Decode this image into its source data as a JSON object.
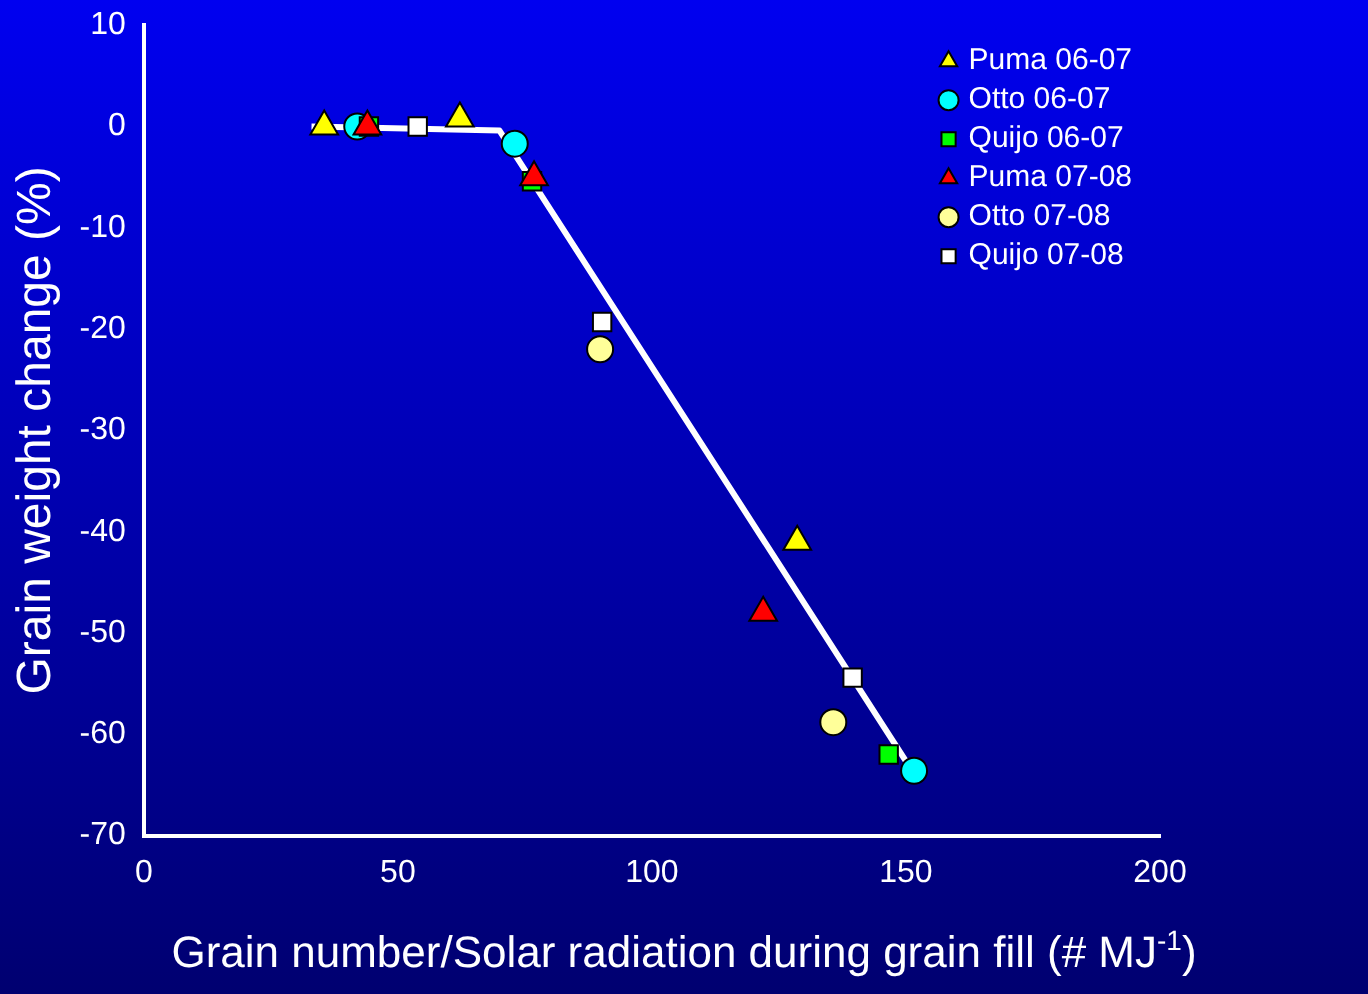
{
  "chart_data": {
    "type": "scatter",
    "xlabel": "Grain number/Solar radiation during grain fill (# MJ$^{-1}$)",
    "ylabel": "Grain weight change (%)",
    "xlim": [
      0,
      200
    ],
    "xticks": [
      0,
      50,
      100,
      150,
      200
    ],
    "ylim": [
      -70,
      10
    ],
    "yticks": [
      -70,
      -60,
      -50,
      -40,
      -30,
      -20,
      -10,
      0,
      10
    ],
    "grid": false,
    "legend": "top right",
    "series": [
      {
        "name": "Puma 06-07",
        "color": "#ffff00",
        "marker": "triangle",
        "x": [
          35.5,
          62.2,
          128.6
        ],
        "values": [
          0,
          0.8,
          -41
        ]
      },
      {
        "name": "Otto 06-07",
        "color": "#00ffff",
        "marker": "circle",
        "x": [
          42,
          73,
          151.6
        ],
        "values": [
          0,
          -1.7,
          -63.6
        ]
      },
      {
        "name": "Quijo 06-07",
        "color": "#00ff00",
        "marker": "square",
        "x": [
          44.3,
          76.4,
          146.6
        ],
        "values": [
          0,
          -5.4,
          -62
        ]
      },
      {
        "name": "Puma 07-08",
        "color": "#ff0000",
        "marker": "triangle",
        "x": [
          44,
          76.8,
          121.9
        ],
        "values": [
          0,
          -5,
          -48
        ]
      },
      {
        "name": "Otto 07-08",
        "color": "#ffff99",
        "marker": "circle",
        "x": [
          89.8,
          135.7
        ],
        "values": [
          -22,
          -58.8
        ]
      },
      {
        "name": "Quijo 07-08",
        "color": "#ffffff",
        "marker": "square",
        "x": [
          53.9,
          90.2,
          139.5
        ],
        "values": [
          0,
          -19.3,
          -54.4
        ]
      },
      {
        "type": "line",
        "color": "#ffffff",
        "marker": "none",
        "line_style": "solid",
        "x": [
          33,
          70,
          150.7
        ],
        "values": [
          0,
          -0.4,
          -63.2
        ]
      }
    ]
  }
}
